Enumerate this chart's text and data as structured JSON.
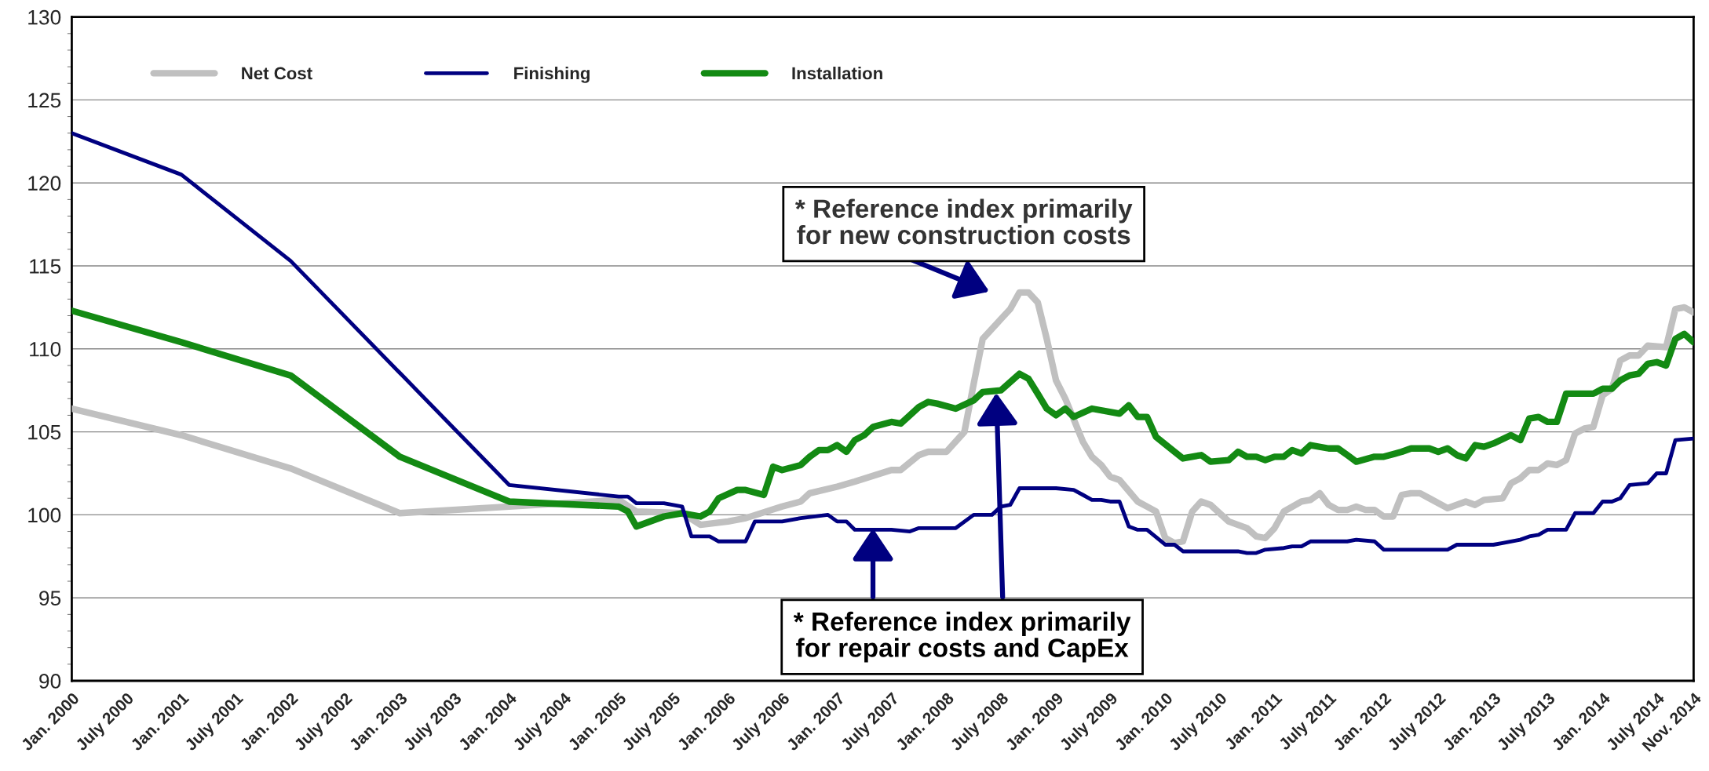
{
  "chart_data": {
    "type": "line",
    "xlim": [
      "2000-01",
      "2014-11"
    ],
    "xticks": [
      {
        "value": "2000-01",
        "label": "Jan. 2000"
      },
      {
        "value": "2000-07",
        "label": "July 2000"
      },
      {
        "value": "2001-01",
        "label": "Jan. 2001"
      },
      {
        "value": "2001-07",
        "label": "July 2001"
      },
      {
        "value": "2002-01",
        "label": "Jan. 2002"
      },
      {
        "value": "2002-07",
        "label": "July 2002"
      },
      {
        "value": "2003-01",
        "label": "Jan. 2003"
      },
      {
        "value": "2003-07",
        "label": "July 2003"
      },
      {
        "value": "2004-01",
        "label": "Jan. 2004"
      },
      {
        "value": "2004-07",
        "label": "July 2004"
      },
      {
        "value": "2005-01",
        "label": "Jan. 2005"
      },
      {
        "value": "2005-07",
        "label": "July 2005"
      },
      {
        "value": "2006-01",
        "label": "Jan. 2006"
      },
      {
        "value": "2006-07",
        "label": "July 2006"
      },
      {
        "value": "2007-01",
        "label": "Jan. 2007"
      },
      {
        "value": "2007-07",
        "label": "July 2007"
      },
      {
        "value": "2008-01",
        "label": "Jan. 2008"
      },
      {
        "value": "2008-07",
        "label": "July 2008"
      },
      {
        "value": "2009-01",
        "label": "Jan. 2009"
      },
      {
        "value": "2009-07",
        "label": "July 2009"
      },
      {
        "value": "2010-01",
        "label": "Jan. 2010"
      },
      {
        "value": "2010-07",
        "label": "July 2010"
      },
      {
        "value": "2011-01",
        "label": "Jan. 2011"
      },
      {
        "value": "2011-07",
        "label": "July 2011"
      },
      {
        "value": "2012-01",
        "label": "Jan. 2012"
      },
      {
        "value": "2012-07",
        "label": "July 2012"
      },
      {
        "value": "2013-01",
        "label": "Jan. 2013"
      },
      {
        "value": "2013-07",
        "label": "July 2013"
      },
      {
        "value": "2014-01",
        "label": "Jan. 2014"
      },
      {
        "value": "2014-07",
        "label": "July 2014"
      },
      {
        "value": "2014-11",
        "label": "Nov. 2014"
      }
    ],
    "ylim": [
      90,
      130
    ],
    "yticks": [
      90,
      95,
      100,
      105,
      110,
      115,
      120,
      125,
      130
    ],
    "grid": "y",
    "legend": "top",
    "line_style": "solid",
    "series": [
      {
        "name": "Net Cost",
        "color": "#c0c0c0",
        "x": [
          "2000-01",
          "2001-01",
          "2002-01",
          "2003-01",
          "2004-01",
          "2005-01",
          "2005-03",
          "2005-08",
          "2005-10",
          "2006-01",
          "2006-03",
          "2006-07",
          "2006-09",
          "2006-10",
          "2007-01",
          "2007-03",
          "2007-07",
          "2007-08",
          "2007-10",
          "2007-11",
          "2008-01",
          "2008-03",
          "2008-04",
          "2008-05",
          "2008-07",
          "2008-08",
          "2008-09",
          "2008-10",
          "2008-11",
          "2008-12",
          "2009-01",
          "2009-02",
          "2009-04",
          "2009-05",
          "2009-06",
          "2009-07",
          "2009-08",
          "2009-10",
          "2009-11",
          "2009-12",
          "2010-01",
          "2010-02",
          "2010-03",
          "2010-04",
          "2010-05",
          "2010-06",
          "2010-08",
          "2010-10",
          "2010-11",
          "2010-12",
          "2011-01",
          "2011-02",
          "2011-04",
          "2011-05",
          "2011-06",
          "2011-07",
          "2011-08",
          "2011-09",
          "2011-10",
          "2011-11",
          "2011-12",
          "2012-01",
          "2012-02",
          "2012-03",
          "2012-04",
          "2012-05",
          "2012-06",
          "2012-08",
          "2012-10",
          "2012-11",
          "2012-12",
          "2013-02",
          "2013-03",
          "2013-04",
          "2013-05",
          "2013-06",
          "2013-07",
          "2013-08",
          "2013-09",
          "2013-10",
          "2013-11",
          "2013-12",
          "2014-01",
          "2014-02",
          "2014-03",
          "2014-04",
          "2014-05",
          "2014-06",
          "2014-08",
          "2014-09",
          "2014-10",
          "2014-11"
        ],
        "values": [
          106.4,
          104.8,
          102.8,
          100.1,
          100.5,
          100.9,
          100.2,
          100.1,
          99.4,
          99.6,
          99.8,
          100.5,
          100.8,
          101.3,
          101.7,
          102.0,
          102.7,
          102.7,
          103.6,
          103.8,
          103.8,
          105.0,
          107.9,
          110.6,
          111.8,
          112.4,
          113.4,
          113.4,
          112.8,
          110.6,
          108.1,
          107.0,
          104.4,
          103.5,
          103.0,
          102.3,
          102.1,
          100.8,
          100.5,
          100.2,
          98.6,
          98.3,
          98.4,
          100.2,
          100.8,
          100.6,
          99.6,
          99.2,
          98.7,
          98.6,
          99.2,
          100.2,
          100.8,
          100.9,
          101.3,
          100.6,
          100.3,
          100.3,
          100.5,
          100.3,
          100.3,
          99.9,
          99.9,
          101.2,
          101.3,
          101.3,
          101.0,
          100.4,
          100.8,
          100.6,
          100.9,
          101.0,
          101.9,
          102.2,
          102.7,
          102.7,
          103.1,
          103.0,
          103.3,
          104.9,
          105.2,
          105.3,
          107.2,
          107.6,
          109.3,
          109.6,
          109.6,
          110.2,
          110.1,
          112.4,
          112.5,
          112.2
        ]
      },
      {
        "name": "Finishing",
        "color": "#000080",
        "x": [
          "2000-01",
          "2001-01",
          "2002-01",
          "2004-01",
          "2005-01",
          "2005-02",
          "2005-03",
          "2005-06",
          "2005-08",
          "2005-09",
          "2005-11",
          "2005-12",
          "2006-03",
          "2006-04",
          "2006-07",
          "2006-09",
          "2006-12",
          "2007-01",
          "2007-02",
          "2007-03",
          "2007-05",
          "2007-07",
          "2007-09",
          "2007-10",
          "2008-02",
          "2008-04",
          "2008-06",
          "2008-07",
          "2008-08",
          "2008-09",
          "2009-01",
          "2009-03",
          "2009-04",
          "2009-05",
          "2009-06",
          "2009-07",
          "2009-08",
          "2009-09",
          "2009-10",
          "2009-11",
          "2010-01",
          "2010-02",
          "2010-03",
          "2010-06",
          "2010-09",
          "2010-10",
          "2010-11",
          "2010-12",
          "2011-02",
          "2011-03",
          "2011-04",
          "2011-05",
          "2011-07",
          "2011-09",
          "2011-10",
          "2011-12",
          "2012-01",
          "2012-02",
          "2012-08",
          "2012-09",
          "2013-01",
          "2013-02",
          "2013-04",
          "2013-05",
          "2013-06",
          "2013-07",
          "2013-09",
          "2013-10",
          "2013-12",
          "2014-01",
          "2014-02",
          "2014-03",
          "2014-04",
          "2014-06",
          "2014-07",
          "2014-08",
          "2014-09",
          "2014-11"
        ],
        "values": [
          123.0,
          120.5,
          115.3,
          101.8,
          101.1,
          101.1,
          100.7,
          100.7,
          100.5,
          98.7,
          98.7,
          98.4,
          98.4,
          99.6,
          99.6,
          99.8,
          100.0,
          99.6,
          99.6,
          99.1,
          99.1,
          99.1,
          99.0,
          99.2,
          99.2,
          100.0,
          100.0,
          100.5,
          100.6,
          101.6,
          101.6,
          101.5,
          101.2,
          100.9,
          100.9,
          100.8,
          100.8,
          99.3,
          99.1,
          99.1,
          98.2,
          98.2,
          97.8,
          97.8,
          97.8,
          97.7,
          97.7,
          97.9,
          98.0,
          98.1,
          98.1,
          98.4,
          98.4,
          98.4,
          98.5,
          98.4,
          97.9,
          97.9,
          97.9,
          98.2,
          98.2,
          98.3,
          98.5,
          98.7,
          98.8,
          99.1,
          99.1,
          100.1,
          100.1,
          100.8,
          100.8,
          101.0,
          101.8,
          101.9,
          102.5,
          102.5,
          104.5,
          104.6
        ]
      },
      {
        "name": "Installation",
        "color": "#138a13",
        "x": [
          "2000-01",
          "2001-01",
          "2002-01",
          "2003-01",
          "2004-01",
          "2005-01",
          "2005-02",
          "2005-03",
          "2005-05",
          "2005-06",
          "2005-08",
          "2005-10",
          "2005-11",
          "2005-12",
          "2006-02",
          "2006-03",
          "2006-05",
          "2006-06",
          "2006-07",
          "2006-09",
          "2006-10",
          "2006-11",
          "2006-12",
          "2007-01",
          "2007-02",
          "2007-03",
          "2007-04",
          "2007-05",
          "2007-07",
          "2007-08",
          "2007-09",
          "2007-10",
          "2007-11",
          "2007-12",
          "2008-02",
          "2008-04",
          "2008-05",
          "2008-07",
          "2008-09",
          "2008-10",
          "2008-11",
          "2008-12",
          "2009-01",
          "2009-02",
          "2009-03",
          "2009-05",
          "2009-08",
          "2009-09",
          "2009-10",
          "2009-11",
          "2009-12",
          "2010-02",
          "2010-03",
          "2010-05",
          "2010-06",
          "2010-08",
          "2010-09",
          "2010-10",
          "2010-11",
          "2010-12",
          "2011-01",
          "2011-02",
          "2011-03",
          "2011-04",
          "2011-05",
          "2011-07",
          "2011-08",
          "2011-09",
          "2011-10",
          "2011-12",
          "2012-01",
          "2012-03",
          "2012-04",
          "2012-06",
          "2012-07",
          "2012-08",
          "2012-09",
          "2012-10",
          "2012-11",
          "2012-12",
          "2013-01",
          "2013-03",
          "2013-04",
          "2013-05",
          "2013-06",
          "2013-07",
          "2013-08",
          "2013-09",
          "2013-12",
          "2014-01",
          "2014-02",
          "2014-03",
          "2014-04",
          "2014-05",
          "2014-06",
          "2014-07",
          "2014-08",
          "2014-09",
          "2014-10",
          "2014-11"
        ],
        "values": [
          112.3,
          110.4,
          108.4,
          103.5,
          100.8,
          100.5,
          100.2,
          99.3,
          99.7,
          99.9,
          100.1,
          99.9,
          100.2,
          101.0,
          101.5,
          101.5,
          101.2,
          102.9,
          102.7,
          103.0,
          103.5,
          103.9,
          103.9,
          104.2,
          103.8,
          104.5,
          104.8,
          105.3,
          105.6,
          105.5,
          106.0,
          106.5,
          106.8,
          106.7,
          106.4,
          106.9,
          107.4,
          107.5,
          108.5,
          108.2,
          107.3,
          106.4,
          106.0,
          106.4,
          105.9,
          106.4,
          106.1,
          106.6,
          105.9,
          105.9,
          104.7,
          103.8,
          103.4,
          103.6,
          103.2,
          103.3,
          103.8,
          103.5,
          103.5,
          103.3,
          103.5,
          103.5,
          103.9,
          103.7,
          104.2,
          104.0,
          104.0,
          103.6,
          103.2,
          103.5,
          103.5,
          103.8,
          104.0,
          104.0,
          103.8,
          104.0,
          103.6,
          103.4,
          104.2,
          104.1,
          104.3,
          104.8,
          104.5,
          105.8,
          105.9,
          105.6,
          105.6,
          107.3,
          107.3,
          107.6,
          107.6,
          108.1,
          108.4,
          108.5,
          109.1,
          109.2,
          109.0,
          110.6,
          110.9,
          110.4
        ]
      }
    ],
    "annotations": [
      "* Reference index primarily\nfor new construction costs",
      "* Reference index primarily\nfor repair costs and CapEx"
    ]
  }
}
